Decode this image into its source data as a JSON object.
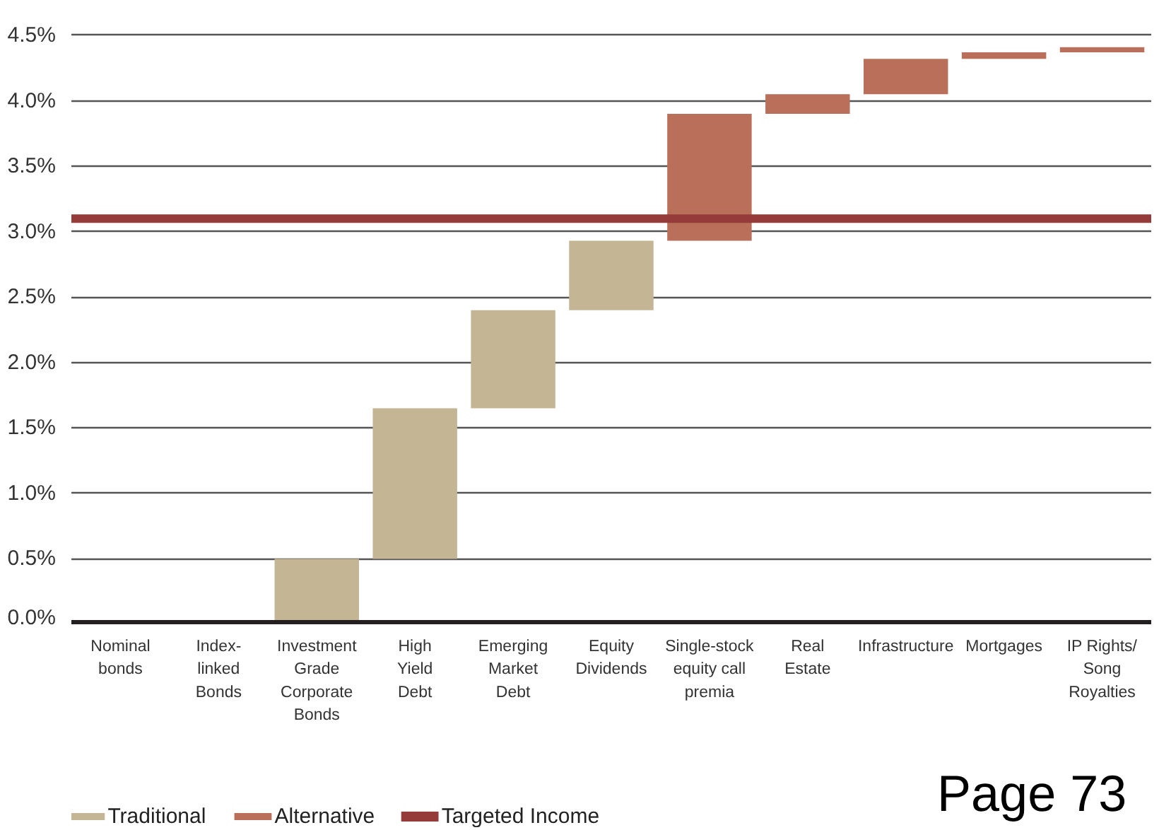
{
  "chart_data": {
    "type": "bar",
    "categories": [
      "Nominal\nbonds",
      "Index-\nlinked\nBonds",
      "Investment\nGrade\nCorporate\nBonds",
      "High\nYield\nDebt",
      "Emerging\nMarket\nDebt",
      "Equity\nDividends",
      "Single-stock\nequity call\npremia",
      "Real\nEstate",
      "Infrastructure",
      "Mortgages",
      "IP Rights/\nSong\nRoyalties"
    ],
    "series": [
      {
        "name": "Traditional",
        "color": "#c4b594",
        "base": [
          null,
          null,
          0,
          0.5,
          1.65,
          2.4,
          null,
          null,
          null,
          null,
          null
        ],
        "values": [
          null,
          null,
          0.5,
          1.15,
          0.75,
          0.53,
          null,
          null,
          null,
          null,
          null
        ]
      },
      {
        "name": "Alternative",
        "color": "#ba6f5a",
        "base": [
          null,
          null,
          null,
          null,
          null,
          null,
          2.93,
          3.9,
          4.05,
          4.32,
          4.37
        ],
        "values": [
          null,
          null,
          null,
          null,
          null,
          null,
          0.97,
          0.15,
          0.27,
          0.05,
          0.04
        ]
      }
    ],
    "ylim": [
      0,
      4.5
    ],
    "yticks": [
      {
        "value": 0,
        "label": "0.0%"
      },
      {
        "value": 0.5,
        "label": "0.5%"
      },
      {
        "value": 1,
        "label": "1.0%"
      },
      {
        "value": 1.5,
        "label": "1.5%"
      },
      {
        "value": 2,
        "label": "2.0%"
      },
      {
        "value": 2.5,
        "label": "2.5%"
      },
      {
        "value": 3,
        "label": "3.0%"
      },
      {
        "value": 3.5,
        "label": "3.5%"
      },
      {
        "value": 4,
        "label": "4.0%"
      },
      {
        "value": 4.5,
        "label": "4.5%"
      }
    ],
    "ref_lines": [
      {
        "axis": "y",
        "value": 3.1,
        "label": "Targeted Income",
        "color": "#953b39"
      }
    ],
    "grid": "y",
    "legend": "bottom left",
    "annotations": [
      "Page 73"
    ]
  }
}
